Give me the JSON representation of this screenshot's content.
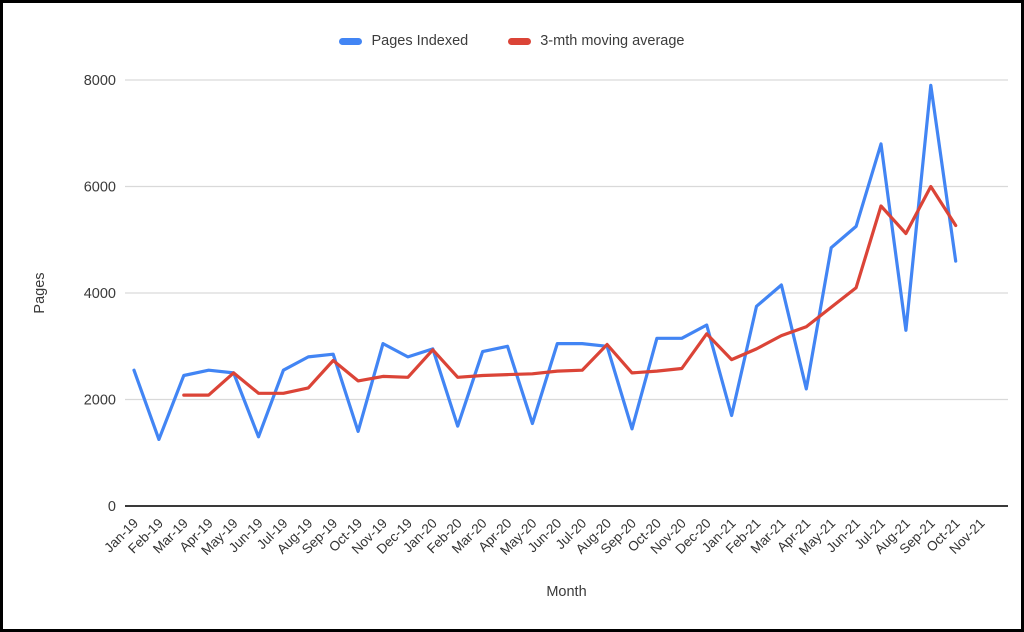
{
  "legend": {
    "items": [
      {
        "label": "Pages Indexed",
        "color": "#4285f4"
      },
      {
        "label": "3-mth moving average",
        "color": "#db4437"
      }
    ]
  },
  "axes": {
    "y_title": "Pages",
    "x_title": "Month"
  },
  "chart_data": {
    "type": "line",
    "title": "",
    "xlabel": "Month",
    "ylabel": "Pages",
    "ylim": [
      0,
      8000
    ],
    "yticks": [
      0,
      2000,
      4000,
      6000,
      8000
    ],
    "grid": true,
    "legend_position": "top",
    "categories": [
      "Jan-19",
      "Feb-19",
      "Mar-19",
      "Apr-19",
      "May-19",
      "Jun-19",
      "Jul-19",
      "Aug-19",
      "Sep-19",
      "Oct-19",
      "Nov-19",
      "Dec-19",
      "Jan-20",
      "Feb-20",
      "Mar-20",
      "Apr-20",
      "May-20",
      "Jun-20",
      "Jul-20",
      "Aug-20",
      "Sep-20",
      "Oct-20",
      "Nov-20",
      "Dec-20",
      "Jan-21",
      "Feb-21",
      "Mar-21",
      "Apr-21",
      "May-21",
      "Jun-21",
      "Jul-21",
      "Aug-21",
      "Sep-21",
      "Oct-21",
      "Nov-21"
    ],
    "series": [
      {
        "name": "Pages Indexed",
        "color": "#4285f4",
        "values": [
          2550,
          1250,
          2450,
          2550,
          2500,
          1300,
          2550,
          2800,
          2850,
          1400,
          3050,
          2800,
          2950,
          1500,
          2900,
          3000,
          1550,
          3050,
          3050,
          3000,
          1450,
          3150,
          3150,
          3400,
          1700,
          3750,
          4150,
          2200,
          4850,
          5250,
          6800,
          3300,
          7900,
          4600,
          null
        ]
      },
      {
        "name": "3-mth moving average",
        "color": "#db4437",
        "values": [
          null,
          null,
          2083,
          2083,
          2500,
          2117,
          2117,
          2217,
          2733,
          2350,
          2433,
          2417,
          2933,
          2417,
          2450,
          2467,
          2483,
          2533,
          2550,
          3033,
          2500,
          2533,
          2583,
          3233,
          2750,
          2950,
          3200,
          3367,
          3733,
          4100,
          5633,
          5117,
          6000,
          5267,
          null
        ]
      }
    ]
  }
}
